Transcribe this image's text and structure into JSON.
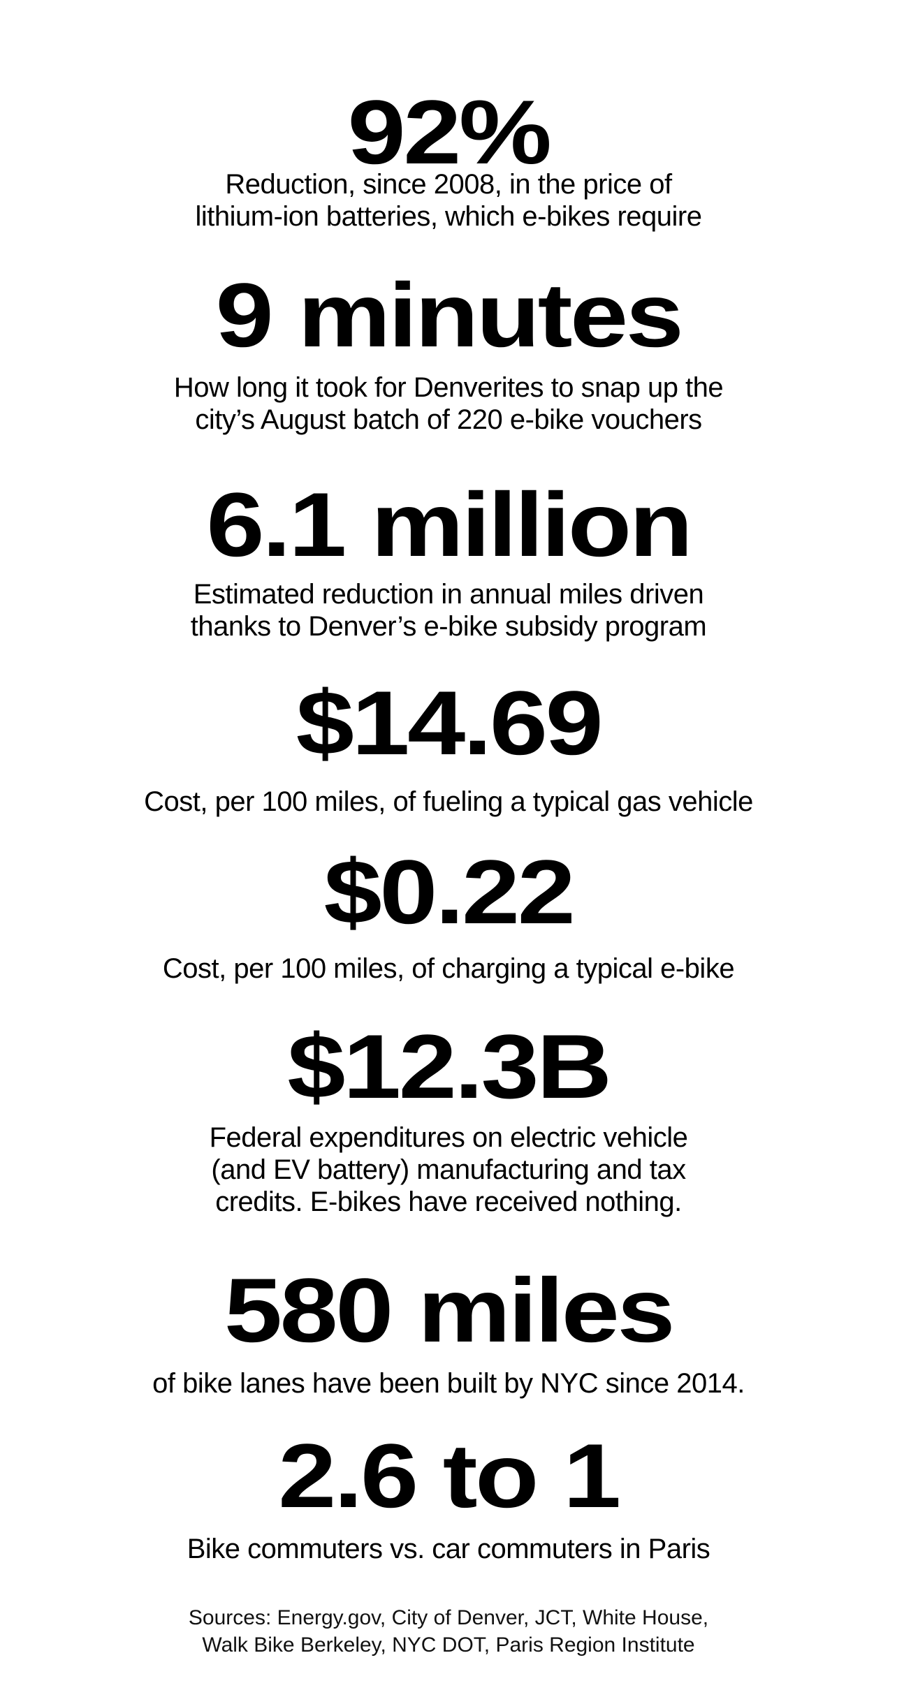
{
  "stats": [
    {
      "figure": "92%",
      "lines": [
        "Reduction, since 2008, in the price of",
        "lithium-ion batteries, which e-bikes require"
      ]
    },
    {
      "figure": "9 minutes",
      "lines": [
        "How long it took for Denverites to snap up the",
        "city’s August batch of 220 e-bike vouchers"
      ]
    },
    {
      "figure": "6.1 million",
      "lines": [
        "Estimated reduction in annual miles driven",
        "thanks to Denver’s e-bike subsidy program"
      ]
    },
    {
      "figure": "$14.69",
      "lines": [
        "Cost, per 100 miles, of fueling a typical gas vehicle"
      ]
    },
    {
      "figure": "$0.22",
      "lines": [
        "Cost, per 100 miles, of charging a typical e-bike"
      ]
    },
    {
      "figure": "$12.3B",
      "lines": [
        "Federal expenditures on electric vehicle",
        "(and EV battery) manufacturing and tax",
        "credits. E-bikes have received nothing."
      ]
    },
    {
      "figure": "580 miles",
      "lines": [
        "of bike lanes have been built by NYC since 2014."
      ]
    },
    {
      "figure": "2.6 to 1",
      "lines": [
        "Bike commuters vs. car commuters in Paris"
      ]
    }
  ],
  "sources": [
    "Sources: Energy.gov, City of Denver, JCT, White House,",
    "Walk Bike Berkeley, NYC DOT, Paris Region Institute"
  ]
}
